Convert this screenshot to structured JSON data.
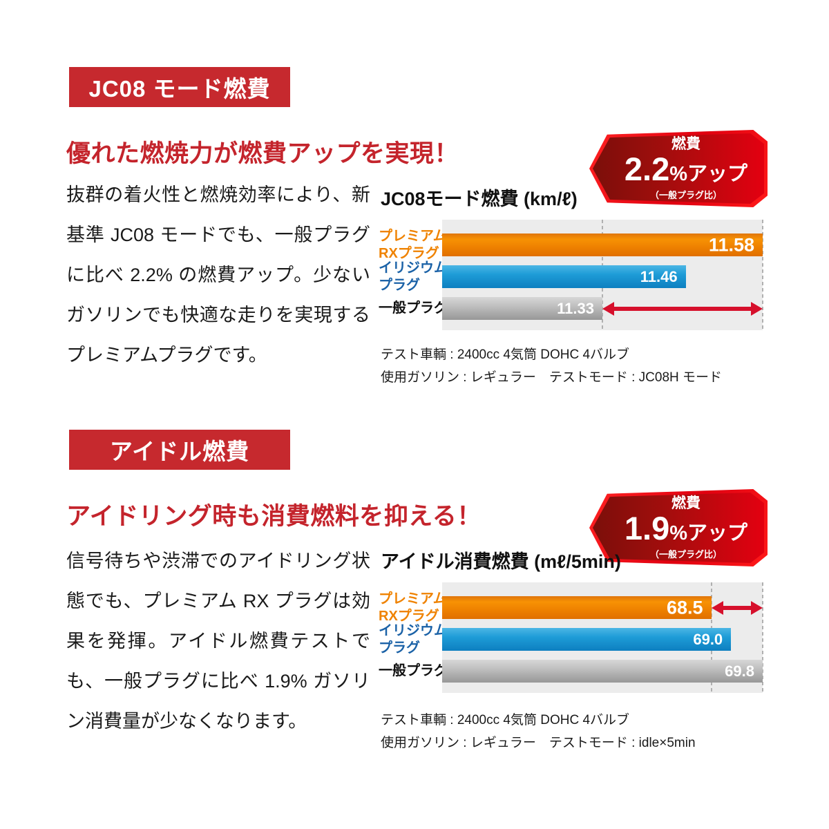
{
  "colors": {
    "header_red": "#c6292e",
    "headline_red": "#c4242c",
    "hex_border": "#ee0012",
    "hex_dark": "#7b0f0a",
    "hex_bright": "#e30010",
    "bar_orange": "#ef8200",
    "bar_blue": "#1c9ad6",
    "bar_gray": "#b5b5b5",
    "label_blue": "#1b62a7",
    "plot_bg": "#ececec",
    "arrow_red": "#d6102c",
    "text": "#1a1a1a"
  },
  "sections": [
    {
      "badge_label": "JC08 モード燃費",
      "headline": "優れた燃焼力が燃費アップを実現！",
      "body": "抜群の着火性と燃焼効率により、新基準 JC08 モードでも、一般プラグに比べ 2.2% の燃費アップ。少ないガソリンでも快適な走りを実現するプレミアムプラグです。",
      "hex_badge": {
        "top": "燃費",
        "value": "2.2",
        "suffix": "%アップ",
        "note": "（一般プラグ比）"
      },
      "footnotes": [
        "テスト車輌 : 2400cc 4気筒 DOHC 4バルブ",
        "使用ガソリン : レギュラー　テストモード : JC08H モード"
      ]
    },
    {
      "badge_label": "アイドル燃費",
      "headline": "アイドリング時も消費燃料を抑える！",
      "body": "信号待ちや渋滞でのアイドリング状態でも、プレミアム RX プラグは効果を発揮。アイドル燃費テストでも、一般プラグに比べ 1.9% ガソリン消費量が少なくなります。",
      "hex_badge": {
        "top": "燃費",
        "value": "1.9",
        "suffix": "%アップ",
        "note": "（一般プラグ比）"
      },
      "footnotes": [
        "テスト車輌 : 2400cc 4気筒 DOHC 4バルブ",
        "使用ガソリン : レギュラー　テストモード : idle×5min"
      ]
    }
  ],
  "chart_data": [
    {
      "type": "bar",
      "orientation": "horizontal",
      "title": "JC08モード燃費 (km/ℓ)",
      "unit": "km/ℓ",
      "categories": [
        [
          "プレミアム",
          "RXプラグ"
        ],
        [
          "イリジウム",
          "プラグ"
        ],
        [
          "一般プラグ"
        ]
      ],
      "values": [
        11.58,
        11.46,
        11.33
      ],
      "value_labels": [
        "11.58",
        "11.46",
        "11.33"
      ],
      "bar_classes": [
        "orange",
        "blue",
        "gray"
      ],
      "label_classes": [
        "orange",
        "blue",
        "dark"
      ],
      "xlim": [
        11.08,
        11.58
      ],
      "dashed_at": [
        11.33,
        11.58
      ],
      "arrow": {
        "from": 11.33,
        "to": 11.58,
        "row": 2
      },
      "grid": false,
      "legend": false
    },
    {
      "type": "bar",
      "orientation": "horizontal",
      "title": "アイドル消費燃費 (mℓ/5min)",
      "unit": "mℓ/5min",
      "categories": [
        [
          "プレミアム",
          "RXプラグ"
        ],
        [
          "イリジウム",
          "プラグ"
        ],
        [
          "一般プラグ"
        ]
      ],
      "values": [
        68.5,
        69.0,
        69.8
      ],
      "value_labels": [
        "68.5",
        "69.0",
        "69.8"
      ],
      "bar_classes": [
        "orange",
        "blue",
        "gray"
      ],
      "label_classes": [
        "orange",
        "blue",
        "dark"
      ],
      "xlim": [
        61.7,
        69.8
      ],
      "dashed_at": [
        68.5,
        69.8
      ],
      "arrow": {
        "from": 68.5,
        "to": 69.8,
        "row": 0
      },
      "grid": false,
      "legend": false
    }
  ]
}
